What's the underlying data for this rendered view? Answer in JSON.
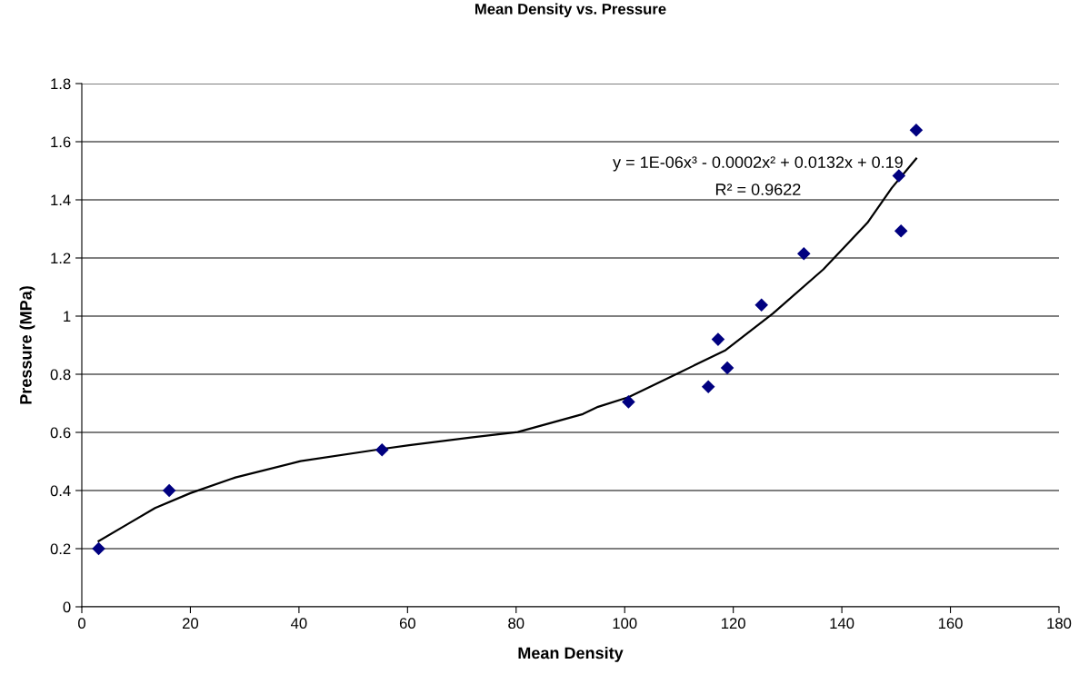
{
  "chart_data": {
    "type": "scatter",
    "title": "Mean Density vs. Pressure",
    "xlabel": "Mean Density",
    "ylabel": "Pressure (MPa)",
    "xlim": [
      0,
      180
    ],
    "xticks": [
      0,
      20,
      40,
      60,
      80,
      100,
      120,
      140,
      160,
      180
    ],
    "ylim": [
      0,
      1.8
    ],
    "yticks": [
      0,
      0.2,
      0.4,
      0.6,
      0.8,
      1,
      1.2,
      1.4,
      1.6,
      1.8
    ],
    "grid": "y",
    "marker": "diamond",
    "series": [
      {
        "color": "#000080",
        "x": [
          3.1,
          16.1,
          55.3,
          100.7,
          115.4,
          117.2,
          118.9,
          125.2,
          133.0,
          150.5,
          150.9,
          153.7
        ],
        "values": [
          0.2,
          0.4,
          0.54,
          0.705,
          0.757,
          0.92,
          0.822,
          1.038,
          1.215,
          1.483,
          1.293,
          1.64
        ]
      },
      {
        "type": "line",
        "color": "#000000",
        "marker": "none",
        "x": [
          3.1,
          8.4,
          13.5,
          20,
          28.3,
          40.3,
          55.3,
          60.3,
          72,
          80.3,
          92.3,
          95.1,
          100.7,
          109.9,
          118.6,
          127.3,
          136.6,
          144.7,
          149.2,
          153.7
        ],
        "values": [
          0.226,
          0.284,
          0.34,
          0.391,
          0.445,
          0.501,
          0.543,
          0.556,
          0.583,
          0.601,
          0.663,
          0.688,
          0.721,
          0.804,
          0.883,
          1.009,
          1.161,
          1.321,
          1.441,
          1.542
        ]
      }
    ],
    "annotations": [
      "y = 1E-06x³ - 0.0002x² + 0.0132x + 0.19",
      "R² = 0.9622"
    ]
  }
}
